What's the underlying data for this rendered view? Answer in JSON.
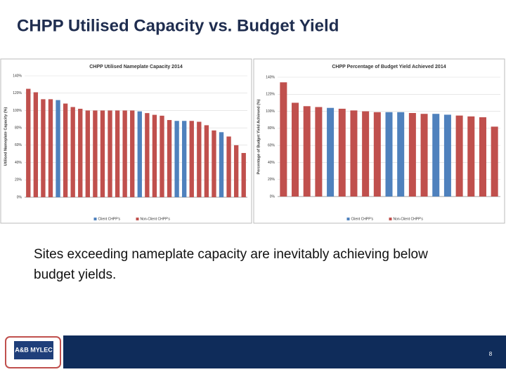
{
  "slide": {
    "title": "CHPP Utilised Capacity vs. Budget Yield",
    "text": [
      "Sites exceeding nameplate capacity are inevitably achieving below",
      "budget yields."
    ],
    "logo": "A&B MYLEC",
    "page_number": "8"
  },
  "chart_data": [
    {
      "type": "bar",
      "title": "CHPP Utilised Nameplate Capacity 2014",
      "y_label": "Utilised Nameplate Capacity (%)",
      "categories": [
        null,
        null,
        null,
        null,
        null,
        null,
        null,
        null,
        null,
        null,
        null,
        null,
        null,
        null,
        null,
        null,
        null,
        null,
        null,
        null,
        null,
        null,
        null,
        null,
        null,
        null,
        null,
        null,
        null,
        null
      ],
      "series": [
        {
          "name": "Client CHPP's",
          "color": "#4f81bd",
          "values": [
            null,
            null,
            null,
            null,
            112,
            null,
            null,
            null,
            null,
            null,
            null,
            null,
            null,
            null,
            null,
            99,
            null,
            null,
            null,
            null,
            88,
            88,
            null,
            null,
            null,
            null,
            75,
            null,
            null,
            null
          ]
        },
        {
          "name": "Non-Client CHPP's",
          "color": "#c0504d",
          "values": [
            125,
            121,
            113,
            113,
            null,
            108,
            104,
            102,
            100,
            100,
            100,
            100,
            100,
            100,
            100,
            null,
            97,
            95,
            94,
            89,
            null,
            null,
            88,
            87,
            83,
            77,
            null,
            70,
            60,
            51
          ]
        }
      ],
      "ylim": [
        0,
        140
      ],
      "yticks": [
        {
          "value": 0,
          "label": "0%"
        },
        {
          "value": 20,
          "label": "20%"
        },
        {
          "value": 40,
          "label": "40%"
        },
        {
          "value": 60,
          "label": "60%"
        },
        {
          "value": 80,
          "label": "80%"
        },
        {
          "value": 100,
          "label": "100%"
        },
        {
          "value": 120,
          "label": "120%"
        },
        {
          "value": 140,
          "label": "140%"
        }
      ],
      "grid": true,
      "legend": "bottom"
    },
    {
      "type": "bar",
      "title": "CHPP Percentage of Budget Yield Achieved 2014",
      "y_label": "Percentage of Budget Yield Achieved (%)",
      "categories": [
        null,
        null,
        null,
        null,
        null,
        null,
        null,
        null,
        null,
        null,
        null,
        null,
        null,
        null,
        null,
        null,
        null,
        null,
        null
      ],
      "series": [
        {
          "name": "Client CHPP's",
          "color": "#4f81bd",
          "values": [
            null,
            null,
            null,
            null,
            104,
            null,
            null,
            null,
            null,
            99,
            99,
            null,
            null,
            97,
            96,
            null,
            null,
            null,
            null
          ]
        },
        {
          "name": "Non-Client CHPP's",
          "color": "#c0504d",
          "values": [
            134,
            110,
            106,
            105,
            null,
            103,
            101,
            100,
            99,
            null,
            null,
            98,
            97,
            null,
            null,
            95,
            94,
            93,
            82
          ]
        }
      ],
      "ylim": [
        0,
        140
      ],
      "yticks": [
        {
          "value": 0,
          "label": "0%"
        },
        {
          "value": 20,
          "label": "20%"
        },
        {
          "value": 40,
          "label": "40%"
        },
        {
          "value": 60,
          "label": "60%"
        },
        {
          "value": 80,
          "label": "80%"
        },
        {
          "value": 100,
          "label": "100%"
        },
        {
          "value": 120,
          "label": "120%"
        },
        {
          "value": 140,
          "label": "140%"
        }
      ],
      "grid": true,
      "legend": "bottom"
    }
  ]
}
